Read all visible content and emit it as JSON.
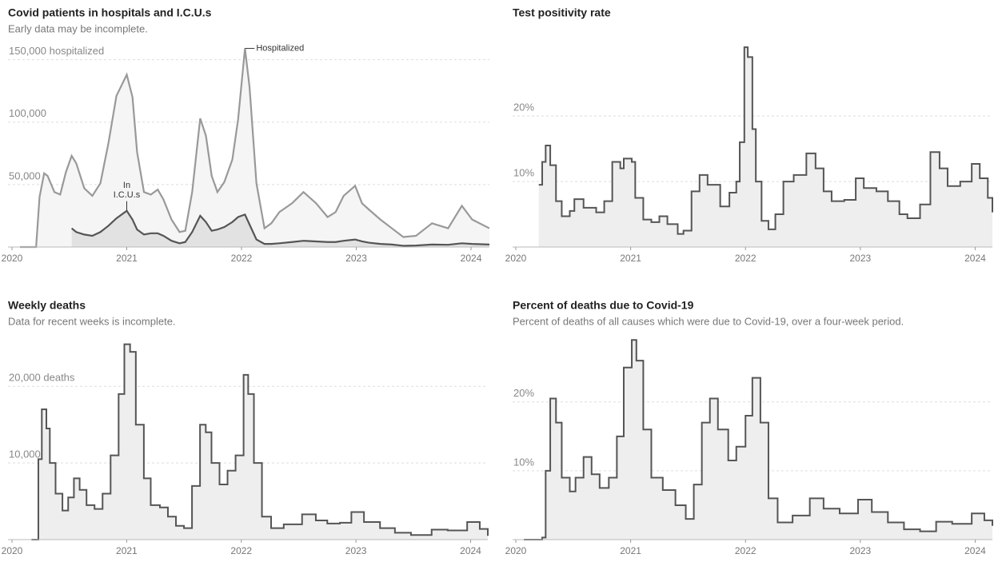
{
  "chart_data": [
    {
      "type": "area",
      "title": "Covid patients in hospitals and I.C.U.s",
      "subtitle": "Early data may be incomplete.",
      "x": [
        2020.07,
        2020.21,
        2020.24,
        2020.28,
        2020.31,
        2020.37,
        2020.42,
        2020.47,
        2020.52,
        2020.56,
        2020.63,
        2020.7,
        2020.77,
        2020.84,
        2020.91,
        2021.0,
        2021.05,
        2021.09,
        2021.15,
        2021.21,
        2021.27,
        2021.32,
        2021.39,
        2021.46,
        2021.51,
        2021.57,
        2021.64,
        2021.69,
        2021.74,
        2021.79,
        2021.85,
        2021.92,
        2021.97,
        2022.03,
        2022.07,
        2022.13,
        2022.2,
        2022.26,
        2022.33,
        2022.44,
        2022.54,
        2022.65,
        2022.75,
        2022.82,
        2022.89,
        2022.99,
        2023.05,
        2023.11,
        2023.21,
        2023.31,
        2023.41,
        2023.52,
        2023.66,
        2023.8,
        2023.92,
        2024.01,
        2024.16
      ],
      "series": [
        {
          "name": "Hospitalized",
          "color": "#999999",
          "fill": "#f5f5f5",
          "values": [
            0,
            0,
            40000,
            59000,
            57000,
            44000,
            42000,
            60000,
            73000,
            67000,
            47000,
            41000,
            51000,
            83000,
            121000,
            138000,
            120000,
            76000,
            44000,
            42000,
            46000,
            38000,
            22000,
            12000,
            13000,
            44000,
            103000,
            89000,
            57000,
            44000,
            52000,
            70000,
            102000,
            159000,
            128000,
            51000,
            15000,
            19000,
            28000,
            35000,
            44000,
            35000,
            24000,
            28000,
            41000,
            49000,
            35000,
            30000,
            22000,
            15000,
            8000,
            9000,
            19000,
            15000,
            33000,
            22000,
            15000
          ]
        },
        {
          "name": "In I.C.U.s",
          "color": "#555555",
          "fill": "#e2e2e2",
          "values": [
            null,
            null,
            null,
            null,
            null,
            null,
            null,
            null,
            15000,
            12000,
            10000,
            9000,
            12000,
            17000,
            23000,
            29000,
            22000,
            14000,
            10000,
            11000,
            11000,
            9000,
            5000,
            3000,
            4000,
            12000,
            25000,
            20000,
            13000,
            14000,
            16000,
            20000,
            24000,
            26000,
            18000,
            6000,
            2500,
            2500,
            3000,
            4000,
            5000,
            4500,
            4000,
            4000,
            5000,
            6000,
            4500,
            3500,
            2500,
            2000,
            1000,
            1200,
            2000,
            1800,
            3000,
            2500,
            2000
          ]
        }
      ],
      "xlim": [
        2020,
        2024.16
      ],
      "xticks": [
        2020,
        2021,
        2022,
        2023,
        2024
      ],
      "ylim": [
        0,
        160000
      ],
      "yticks": [
        {
          "value": 50000,
          "label": "50,000"
        },
        {
          "value": 100000,
          "label": "100,000"
        },
        {
          "value": 150000,
          "label": "150,000 hospitalized"
        }
      ],
      "grid": true
    },
    {
      "type": "area",
      "step": true,
      "title": "Test positivity rate",
      "x": [
        2020.2,
        2020.23,
        2020.26,
        2020.3,
        2020.35,
        2020.4,
        2020.47,
        2020.51,
        2020.59,
        2020.7,
        2020.77,
        2020.84,
        2020.91,
        2020.94,
        2021.01,
        2021.04,
        2021.11,
        2021.18,
        2021.25,
        2021.32,
        2021.41,
        2021.46,
        2021.53,
        2021.6,
        2021.67,
        2021.78,
        2021.86,
        2021.92,
        2021.95,
        2021.99,
        2022.02,
        2022.06,
        2022.09,
        2022.14,
        2022.2,
        2022.26,
        2022.33,
        2022.42,
        2022.53,
        2022.61,
        2022.68,
        2022.75,
        2022.86,
        2022.96,
        2023.03,
        2023.14,
        2023.24,
        2023.34,
        2023.41,
        2023.52,
        2023.61,
        2023.69,
        2023.76,
        2023.87,
        2023.97,
        2024.04,
        2024.11,
        2024.15
      ],
      "series": [
        {
          "name": "Test positivity rate",
          "color": "#555555",
          "fill": "#eeeeee",
          "values": [
            9.5,
            13,
            15.5,
            12.5,
            7,
            4.7,
            5.5,
            7.3,
            6,
            5.3,
            7,
            13,
            12,
            13.5,
            13,
            7.5,
            4.2,
            3.8,
            4.7,
            3.5,
            2,
            2.5,
            8.5,
            11,
            9.5,
            6.2,
            8.3,
            10,
            16,
            30.5,
            29,
            18,
            10,
            4,
            2.7,
            5,
            10,
            11,
            14.3,
            12,
            8.5,
            7,
            7.2,
            10.5,
            9,
            8.5,
            7,
            5,
            4.4,
            6.5,
            14.5,
            12,
            9.3,
            10,
            12.7,
            10.5,
            7.5,
            5.3
          ]
        }
      ],
      "xlim": [
        2020,
        2024.15
      ],
      "xticks": [
        2020,
        2021,
        2022,
        2023,
        2024
      ],
      "ylim": [
        0,
        31
      ],
      "yticks": [
        {
          "value": 10,
          "label": "10%"
        },
        {
          "value": 20,
          "label": "20%"
        }
      ],
      "grid": true
    },
    {
      "type": "area",
      "step": true,
      "title": "Weekly deaths",
      "subtitle": "Data for recent weeks is incomplete.",
      "x": [
        2020.17,
        2020.21,
        2020.23,
        2020.26,
        2020.3,
        2020.33,
        2020.38,
        2020.44,
        2020.49,
        2020.54,
        2020.59,
        2020.65,
        2020.72,
        2020.79,
        2020.86,
        2020.93,
        2020.98,
        2021.03,
        2021.08,
        2021.15,
        2021.21,
        2021.29,
        2021.36,
        2021.43,
        2021.5,
        2021.57,
        2021.64,
        2021.69,
        2021.74,
        2021.81,
        2021.88,
        2021.95,
        2022.02,
        2022.06,
        2022.11,
        2022.18,
        2022.26,
        2022.37,
        2022.53,
        2022.65,
        2022.75,
        2022.86,
        2022.96,
        2023.07,
        2023.21,
        2023.34,
        2023.48,
        2023.66,
        2023.8,
        2023.97,
        2024.08,
        2024.15
      ],
      "series": [
        {
          "name": "Weekly deaths",
          "color": "#555555",
          "fill": "#eeeeee",
          "values": [
            0,
            0,
            10500,
            17000,
            14500,
            10000,
            6000,
            3800,
            5500,
            8000,
            6500,
            4500,
            4000,
            6000,
            11000,
            19000,
            25500,
            24500,
            15000,
            8000,
            4500,
            4200,
            3000,
            1800,
            1500,
            7000,
            15000,
            14000,
            10000,
            7200,
            9000,
            11000,
            21500,
            19000,
            10000,
            3000,
            1500,
            2000,
            3300,
            2500,
            2100,
            2200,
            3600,
            2300,
            1500,
            900,
            600,
            1300,
            1200,
            2300,
            1400,
            500
          ]
        }
      ],
      "xlim": [
        2020,
        2024.15
      ],
      "xticks": [
        2020,
        2021,
        2022,
        2023,
        2024
      ],
      "ylim": [
        0,
        26500
      ],
      "yticks": [
        {
          "value": 10000,
          "label": "10,000"
        },
        {
          "value": 20000,
          "label": "20,000 deaths"
        }
      ],
      "grid": true
    },
    {
      "type": "area",
      "step": true,
      "title": "Percent of deaths due to Covid-19",
      "subtitle": "Percent of deaths of all causes which were due to Covid-19, over a four-week period.",
      "x": [
        2020.07,
        2020.23,
        2020.26,
        2020.3,
        2020.35,
        2020.4,
        2020.47,
        2020.52,
        2020.59,
        2020.66,
        2020.73,
        2020.81,
        2020.88,
        2020.94,
        2021.01,
        2021.05,
        2021.11,
        2021.18,
        2021.28,
        2021.39,
        2021.48,
        2021.55,
        2021.62,
        2021.69,
        2021.76,
        2021.85,
        2021.92,
        2022.0,
        2022.06,
        2022.13,
        2022.2,
        2022.28,
        2022.41,
        2022.56,
        2022.68,
        2022.82,
        2022.98,
        2023.1,
        2023.24,
        2023.38,
        2023.52,
        2023.66,
        2023.8,
        2023.97,
        2024.08,
        2024.15
      ],
      "series": [
        {
          "name": "Percent of deaths due to Covid-19",
          "color": "#555555",
          "fill": "#eeeeee",
          "values": [
            0,
            0.3,
            10,
            20.5,
            17,
            9,
            7,
            9,
            12,
            9.5,
            7.5,
            9,
            15,
            25,
            29,
            26,
            16,
            9,
            7.2,
            5,
            3,
            8,
            17,
            20.5,
            16,
            11.5,
            13.5,
            18,
            23.5,
            17,
            6,
            2.5,
            3.5,
            6,
            4.5,
            3.8,
            5.8,
            4,
            2.5,
            1.5,
            1.2,
            2.6,
            2.3,
            3.8,
            2.8,
            2
          ]
        }
      ],
      "xlim": [
        2020,
        2024.15
      ],
      "xticks": [
        2020,
        2021,
        2022,
        2023,
        2024
      ],
      "ylim": [
        0,
        29.5
      ],
      "yticks": [
        {
          "value": 10,
          "label": "10%"
        },
        {
          "value": 20,
          "label": "20%"
        }
      ],
      "grid": true
    }
  ]
}
